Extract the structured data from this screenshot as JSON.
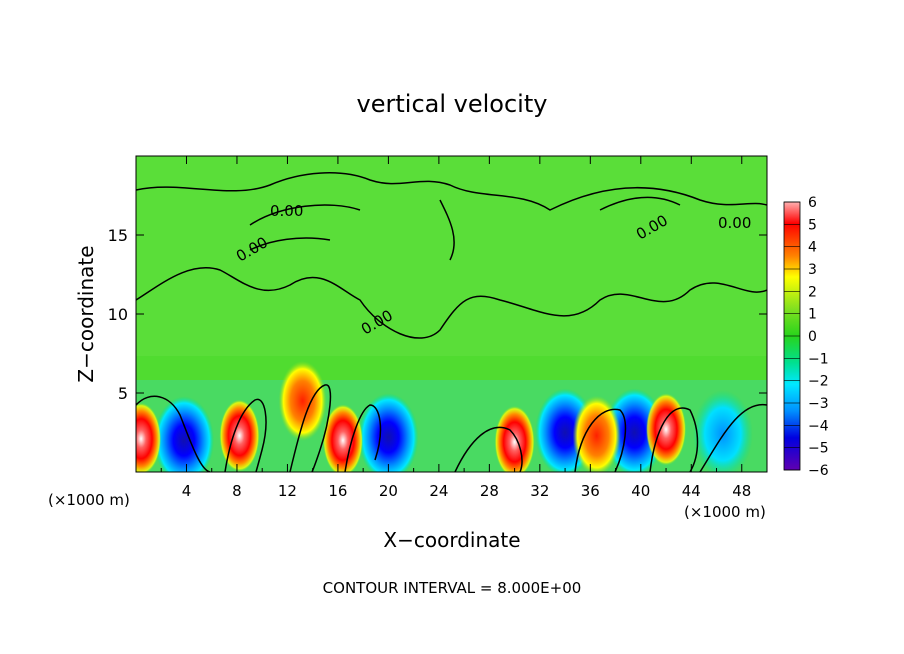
{
  "chart_data": {
    "type": "heatmap",
    "title": "vertical velocity",
    "xlabel": "X−coordinate",
    "ylabel": "Z−coordinate",
    "x_unit": "(×1000 m)",
    "z_unit": "(×1000 m)",
    "xlim": [
      0,
      50
    ],
    "ylim": [
      0,
      20
    ],
    "x_ticks": [
      "4",
      "8",
      "12",
      "16",
      "20",
      "24",
      "28",
      "32",
      "36",
      "40",
      "44",
      "48"
    ],
    "y_ticks": [
      "5",
      "10",
      "15"
    ],
    "colorbar": {
      "min": -6,
      "max": 6,
      "labels": [
        "6",
        "5",
        "4",
        "3",
        "2",
        "1",
        "0",
        "−1",
        "−2",
        "−3",
        "−4",
        "−5",
        "−6"
      ]
    },
    "contour_label": "0.00",
    "footer": "CONTOUR INTERVAL = 8.000E+00",
    "updraft_cores": [
      {
        "x": 0.4,
        "z": 2.1,
        "w": 6
      },
      {
        "x": 8.2,
        "z": 2.3,
        "w": 6
      },
      {
        "x": 16.4,
        "z": 2.0,
        "w": 6
      },
      {
        "x": 30.0,
        "z": 1.9,
        "w": 5
      },
      {
        "x": 42.0,
        "z": 2.7,
        "w": 6
      },
      {
        "x": 13.2,
        "z": 4.5,
        "w": 3
      },
      {
        "x": 36.5,
        "z": 2.3,
        "w": 4.5
      }
    ],
    "downdraft_cores": [
      {
        "x": 3.8,
        "z": 2.0,
        "w": -5
      },
      {
        "x": 20.0,
        "z": 2.2,
        "w": -4
      },
      {
        "x": 34.0,
        "z": 2.5,
        "w": -4
      },
      {
        "x": 39.5,
        "z": 2.5,
        "w": -4
      },
      {
        "x": 46.5,
        "z": 2.4,
        "w": -3
      }
    ]
  }
}
